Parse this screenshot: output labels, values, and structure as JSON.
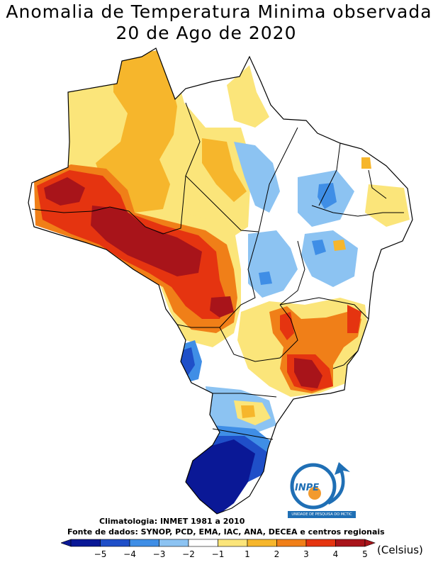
{
  "title": {
    "line1": "Anomalia de Temperatura Minima observada",
    "line2": "20 de Ago de 2020"
  },
  "credits": {
    "climatology": "Climatologia: INMET 1981 a 2010",
    "sources": "Fonte de dados: SYNOP, PCD, EMA, IAC, ANA, DECEA e centros regionais"
  },
  "legend": {
    "units": "(Celsius)",
    "ticks": [
      "-5",
      "-4",
      "-3",
      "-2",
      "-1",
      "1",
      "2",
      "3",
      "4",
      "5"
    ],
    "colors": [
      "#0a1896",
      "#1f4fc8",
      "#3f8ee6",
      "#8cc3f2",
      "#ffffff",
      "#fbe57a",
      "#f6b62c",
      "#f07f18",
      "#e53410",
      "#a8141a"
    ]
  },
  "logo": {
    "name": "INPE",
    "subtitle": "UNIDADE DE PESQUISA DO MCTIC",
    "colors": {
      "blue": "#1f6fb5",
      "orange": "#f29a2e"
    }
  },
  "map": {
    "region": "Brasil",
    "colors": {
      "strong_warm": "#a8141a",
      "warm4": "#e53410",
      "warm3": "#f07f18",
      "warm2": "#f6b62c",
      "warm1": "#fbe57a",
      "cool1": "#8cc3f2",
      "cool2": "#3f8ee6",
      "cool3": "#1f4fc8",
      "cool5": "#0a1896"
    }
  }
}
